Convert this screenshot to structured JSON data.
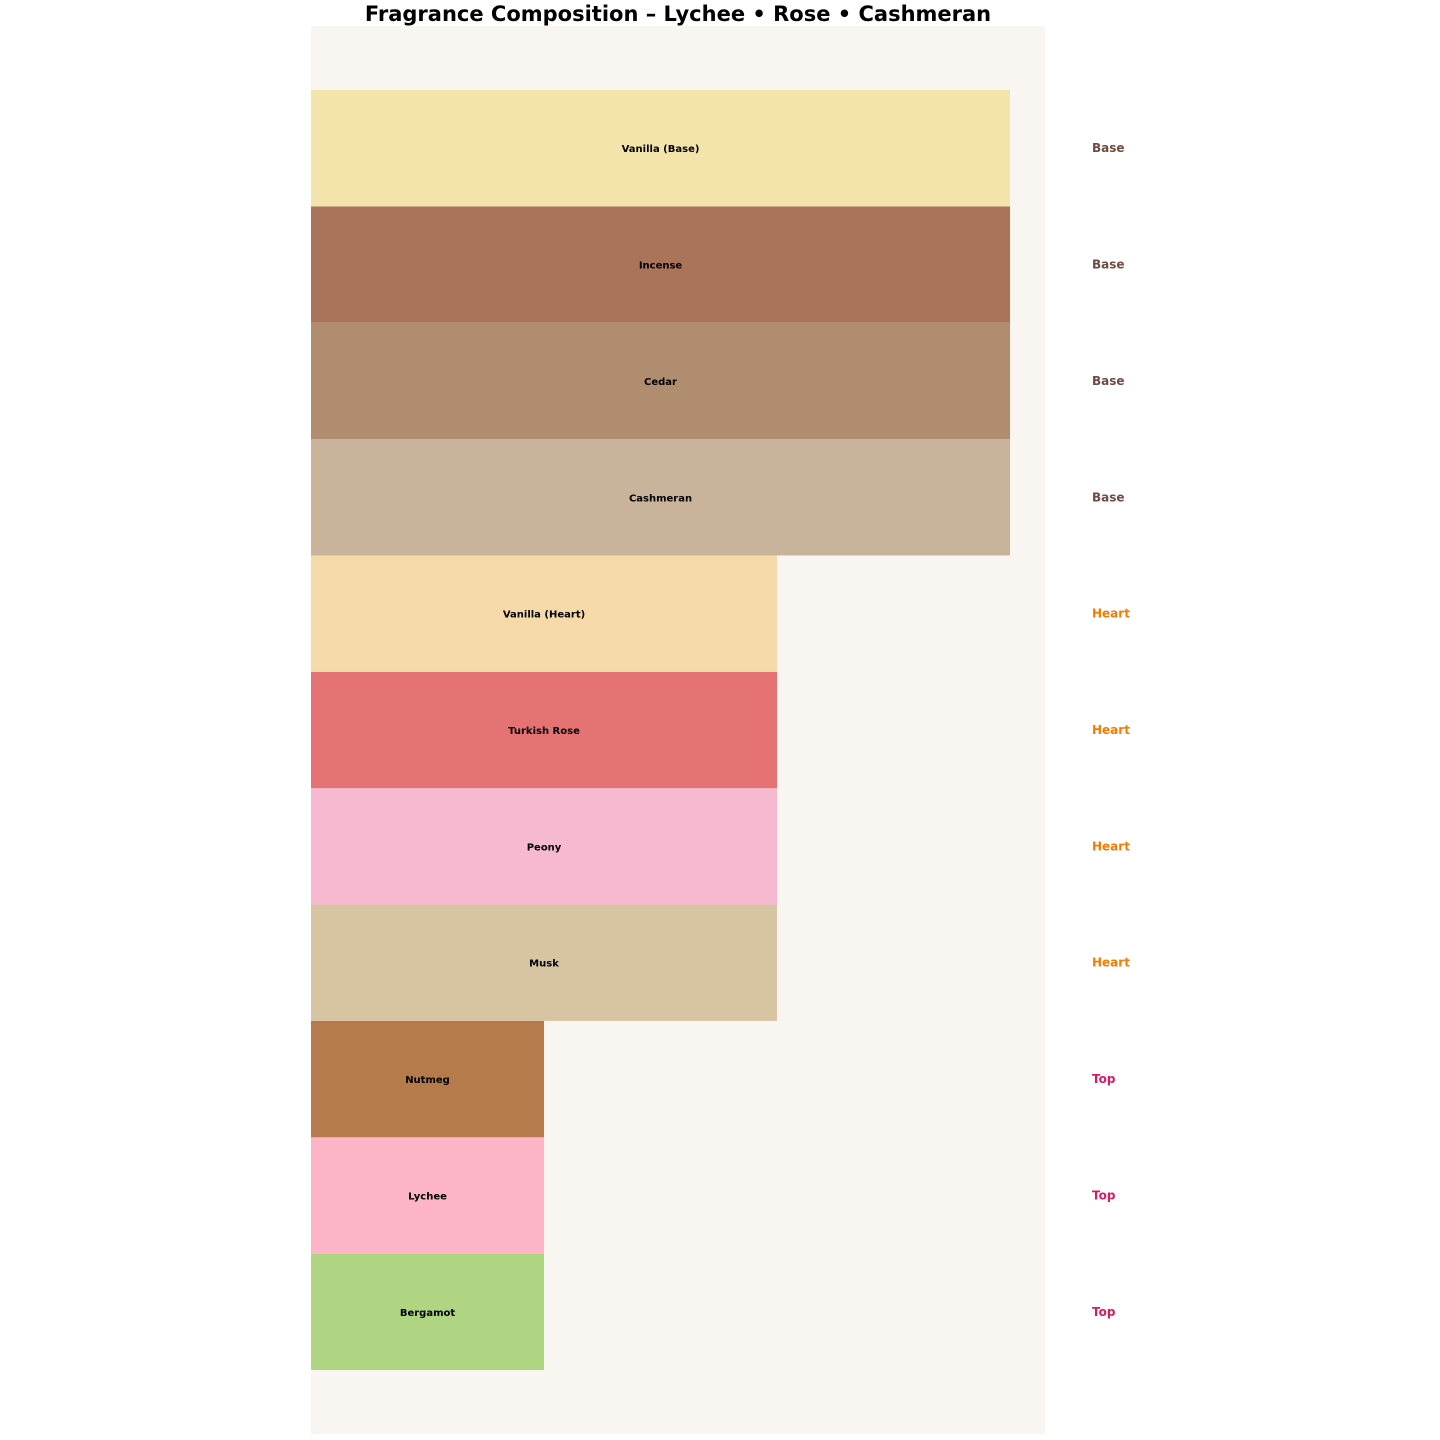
{
  "chart_data": {
    "type": "bar",
    "orientation": "horizontal",
    "title": "Fragrance Composition – Lychee • Rose • Cashmeran",
    "xlabel": "",
    "ylabel": "",
    "xlim": [
      0,
      3.15
    ],
    "grid": false,
    "axes_visible": false,
    "background_color": "#F9F6F2",
    "categories": [
      "Bergamot",
      "Lychee",
      "Nutmeg",
      "Musk",
      "Peony",
      "Turkish Rose",
      "Vanilla (Heart)",
      "Cashmeran",
      "Cedar",
      "Incense",
      "Vanilla (Base)"
    ],
    "values": [
      1,
      1,
      1,
      2,
      2,
      2,
      2,
      3,
      3,
      3,
      3
    ],
    "tiers": [
      "Top",
      "Top",
      "Top",
      "Heart",
      "Heart",
      "Heart",
      "Heart",
      "Base",
      "Base",
      "Base",
      "Base"
    ],
    "colors": [
      "#AFD582",
      "#FDB4C6",
      "#B57B4B",
      "#D7C4A3",
      "#F7B9D0",
      "#E67373",
      "#F6D9A8",
      "#CAB39B",
      "#B18D70",
      "#A9745A",
      "#F3E4AB"
    ],
    "tier_colors": {
      "Top": "#D81B60",
      "Heart": "#F57C00",
      "Base": "#6D4C41"
    }
  }
}
